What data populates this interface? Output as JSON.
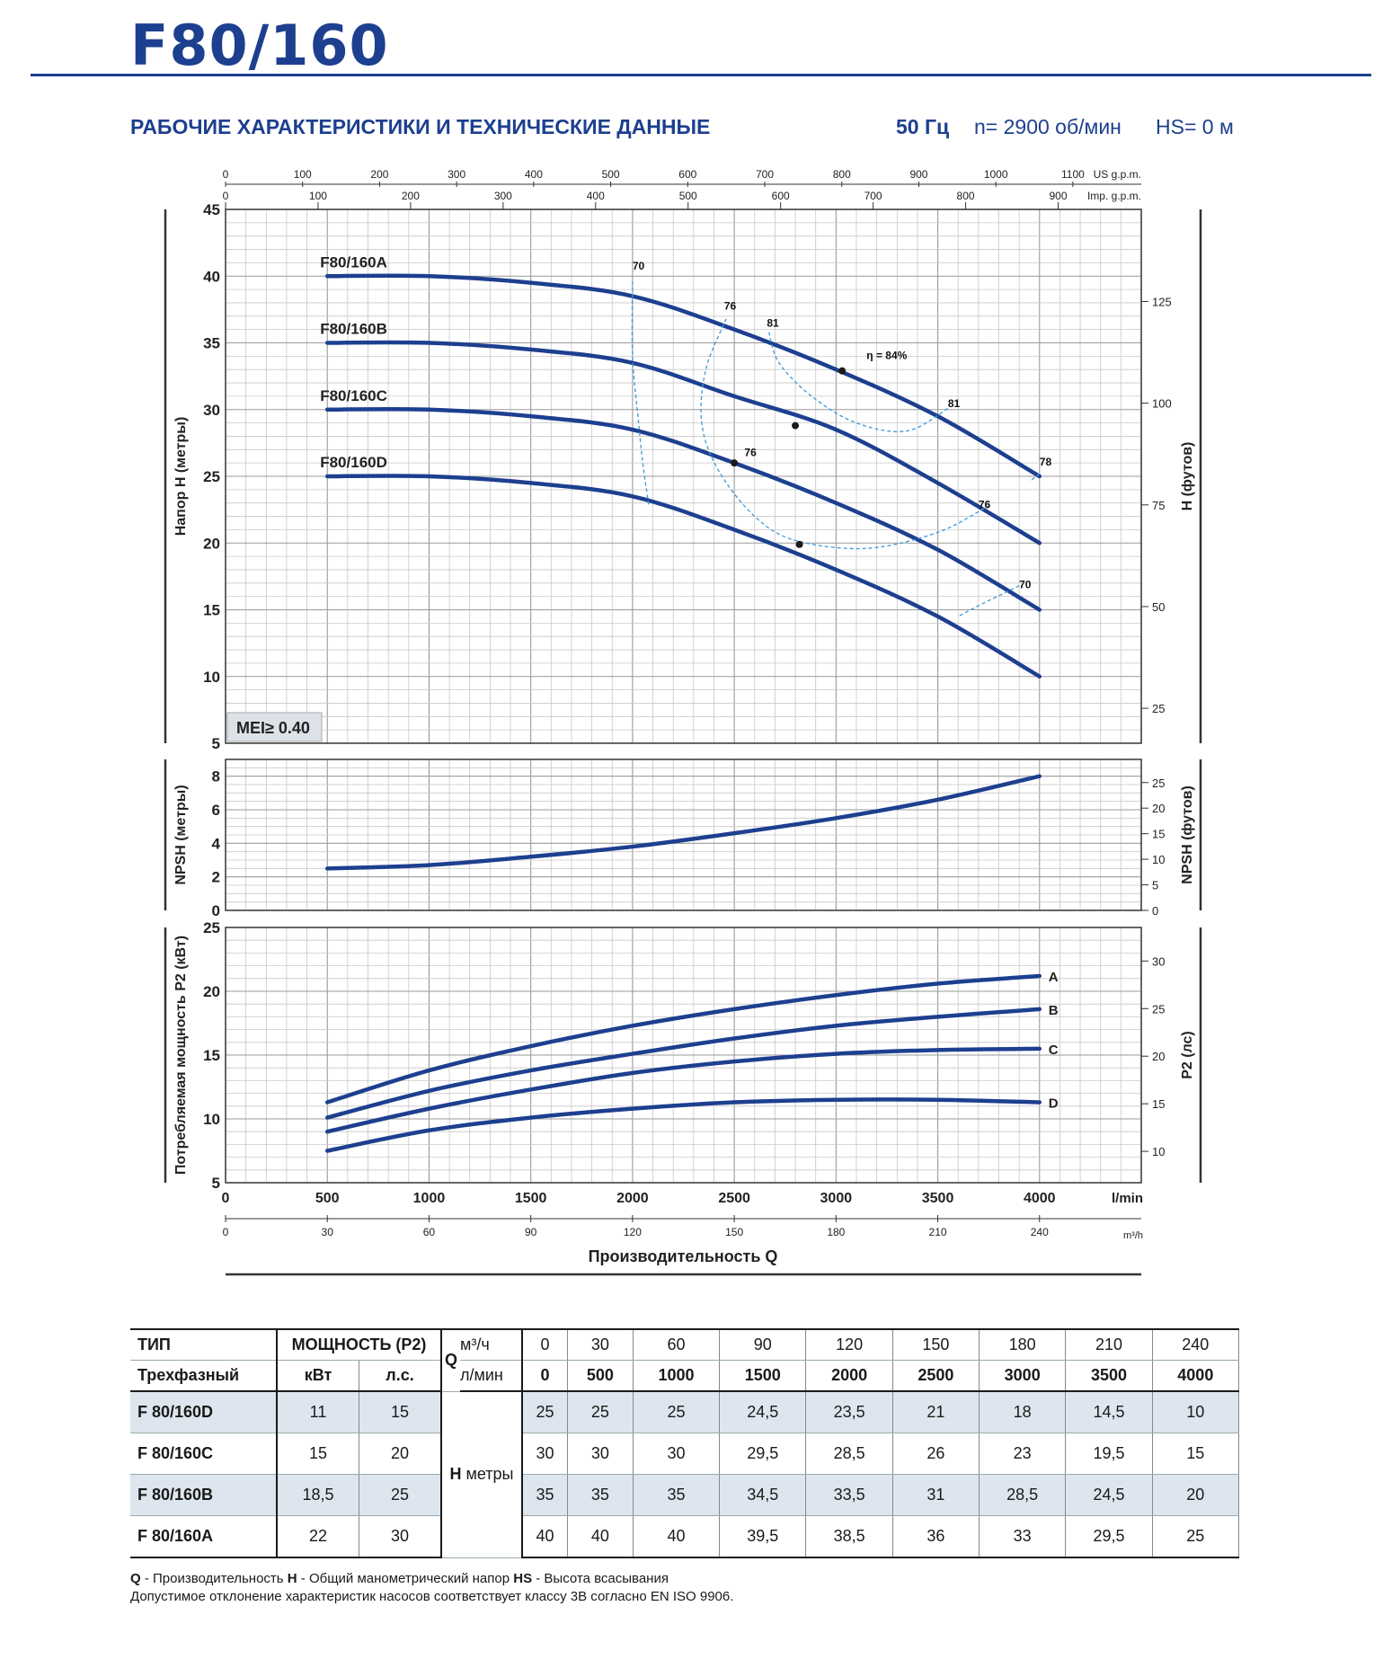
{
  "header": {
    "title": "F80/160",
    "subtitle": "РАБОЧИЕ ХАРАКТЕРИСТИКИ И ТЕХНИЧЕСКИЕ ДАННЫЕ",
    "freq": "50 Гц",
    "speed": "n= 2900 об/мин",
    "hs": "HS= 0 м"
  },
  "colors": {
    "brand": "#1d3f8f",
    "curve": "#1d3f8f",
    "efficiency": "#3b9ad9",
    "table_shade": "#dde6ee"
  },
  "chart_data": [
    {
      "type": "line",
      "panel": "head",
      "ylabel": "Напор H (метры)",
      "ylabel_right": "H (футов)",
      "ylim": [
        5,
        45
      ],
      "xlim_lmin": [
        0,
        4500
      ],
      "yticks": [
        "5",
        "10",
        "15",
        "20",
        "25",
        "30",
        "35",
        "40",
        "45"
      ],
      "yticks_right": [
        "25",
        "50",
        "75",
        "100",
        "125"
      ],
      "badge": "MEI≥ 0.40",
      "top_axis_us": {
        "label": "US g.p.m.",
        "ticks": [
          "0",
          "100",
          "200",
          "300",
          "400",
          "500",
          "600",
          "700",
          "800",
          "900",
          "1000",
          "1100"
        ]
      },
      "top_axis_imp": {
        "label": "Imp. g.p.m.",
        "ticks": [
          "0",
          "100",
          "200",
          "300",
          "400",
          "500",
          "600",
          "700",
          "800",
          "900"
        ]
      },
      "x": [
        500,
        1000,
        1500,
        2000,
        2500,
        3000,
        3500,
        4000
      ],
      "series": [
        {
          "name": "F80/160A",
          "values": [
            40,
            40,
            39.5,
            38.5,
            36,
            33,
            29.5,
            25
          ]
        },
        {
          "name": "F80/160B",
          "values": [
            35,
            35,
            34.5,
            33.5,
            31,
            28.5,
            24.5,
            20
          ]
        },
        {
          "name": "F80/160C",
          "values": [
            30,
            30,
            29.5,
            28.5,
            26,
            23,
            19.5,
            15
          ]
        },
        {
          "name": "F80/160D",
          "values": [
            25,
            25,
            24.5,
            23.5,
            21,
            18,
            14.5,
            10
          ]
        }
      ],
      "efficiency_labels": [
        {
          "text": "70",
          "q": 2000,
          "h": 40.5
        },
        {
          "text": "76",
          "q": 2450,
          "h": 37.5
        },
        {
          "text": "81",
          "q": 2660,
          "h": 36.2
        },
        {
          "text": "η = 84%",
          "q": 3150,
          "h": 33.8
        },
        {
          "text": "81",
          "q": 3550,
          "h": 30.2
        },
        {
          "text": "78",
          "q": 4000,
          "h": 25.8
        },
        {
          "text": "76",
          "q": 2550,
          "h": 26.5
        },
        {
          "text": "76",
          "q": 3700,
          "h": 22.6
        },
        {
          "text": "70",
          "q": 3900,
          "h": 16.6
        }
      ]
    },
    {
      "type": "line",
      "panel": "npsh",
      "ylabel": "NPSH (метры)",
      "ylabel_right": "NPSH (футов)",
      "ylim": [
        0,
        9
      ],
      "yticks": [
        "0",
        "2",
        "4",
        "6",
        "8"
      ],
      "yticks_right": [
        "0",
        "5",
        "10",
        "15",
        "20",
        "25"
      ],
      "x": [
        500,
        1000,
        1500,
        2000,
        2500,
        3000,
        3500,
        4000
      ],
      "series": [
        {
          "values": [
            2.5,
            2.7,
            3.2,
            3.8,
            4.6,
            5.5,
            6.6,
            8.0
          ]
        }
      ]
    },
    {
      "type": "line",
      "panel": "power",
      "ylabel": "Потребляемая мощность P2 (кВт)",
      "ylabel_right": "P2 (лс)",
      "ylim": [
        5,
        25
      ],
      "yticks": [
        "5",
        "10",
        "15",
        "20",
        "25"
      ],
      "yticks_right": [
        "10",
        "15",
        "20",
        "25",
        "30"
      ],
      "x": [
        500,
        1000,
        1500,
        2000,
        2500,
        3000,
        3500,
        4000
      ],
      "series": [
        {
          "name": "A",
          "values": [
            11.3,
            13.8,
            15.7,
            17.3,
            18.6,
            19.7,
            20.6,
            21.2
          ]
        },
        {
          "name": "B",
          "values": [
            10.1,
            12.2,
            13.8,
            15.1,
            16.3,
            17.3,
            18.0,
            18.6
          ]
        },
        {
          "name": "C",
          "values": [
            9.0,
            10.8,
            12.3,
            13.6,
            14.5,
            15.1,
            15.4,
            15.5
          ]
        },
        {
          "name": "D",
          "values": [
            7.5,
            9.1,
            10.1,
            10.8,
            11.3,
            11.5,
            11.5,
            11.3
          ]
        }
      ]
    }
  ],
  "x_axis": {
    "lmin_ticks": [
      "0",
      "500",
      "1000",
      "1500",
      "2000",
      "2500",
      "3000",
      "3500",
      "4000"
    ],
    "lmin_unit": "l/min",
    "m3h_ticks": [
      "0",
      "30",
      "60",
      "90",
      "120",
      "150",
      "180",
      "210",
      "240"
    ],
    "m3h_unit": "m³/h",
    "title": "Производительность Q"
  },
  "table": {
    "h_type": "ТИП",
    "h_three_phase": "Трехфазный",
    "h_power": "МОЩНОСТЬ (P2)",
    "h_kw": "кВт",
    "h_hp": "л.с.",
    "h_q": "Q",
    "h_m3h": "м³/ч",
    "h_lmin": "л/мин",
    "q_m3h": [
      "0",
      "30",
      "60",
      "90",
      "120",
      "150",
      "180",
      "210",
      "240"
    ],
    "q_lmin": [
      "0",
      "500",
      "1000",
      "1500",
      "2000",
      "2500",
      "3000",
      "3500",
      "4000"
    ],
    "h_label": "H",
    "h_unit": "метры",
    "rows": [
      {
        "model": "F 80/160D",
        "kw": "11",
        "hp": "15",
        "h": [
          "25",
          "25",
          "25",
          "24,5",
          "23,5",
          "21",
          "18",
          "14,5",
          "10"
        ]
      },
      {
        "model": "F 80/160C",
        "kw": "15",
        "hp": "20",
        "h": [
          "30",
          "30",
          "30",
          "29,5",
          "28,5",
          "26",
          "23",
          "19,5",
          "15"
        ]
      },
      {
        "model": "F 80/160B",
        "kw": "18,5",
        "hp": "25",
        "h": [
          "35",
          "35",
          "35",
          "34,5",
          "33,5",
          "31",
          "28,5",
          "24,5",
          "20"
        ]
      },
      {
        "model": "F 80/160A",
        "kw": "22",
        "hp": "30",
        "h": [
          "40",
          "40",
          "40",
          "39,5",
          "38,5",
          "36",
          "33",
          "29,5",
          "25"
        ]
      }
    ]
  },
  "notes": {
    "q_key": "Q",
    "q_text": " - Производительность  ",
    "h_key": "H",
    "h_text": " - Общий манометрический напор  ",
    "hs_key": "HS",
    "hs_text": " - Высота всасывания",
    "line2": "Допустимое отклонение характеристик насосов соответствует классу 3B согласно EN ISO 9906."
  }
}
